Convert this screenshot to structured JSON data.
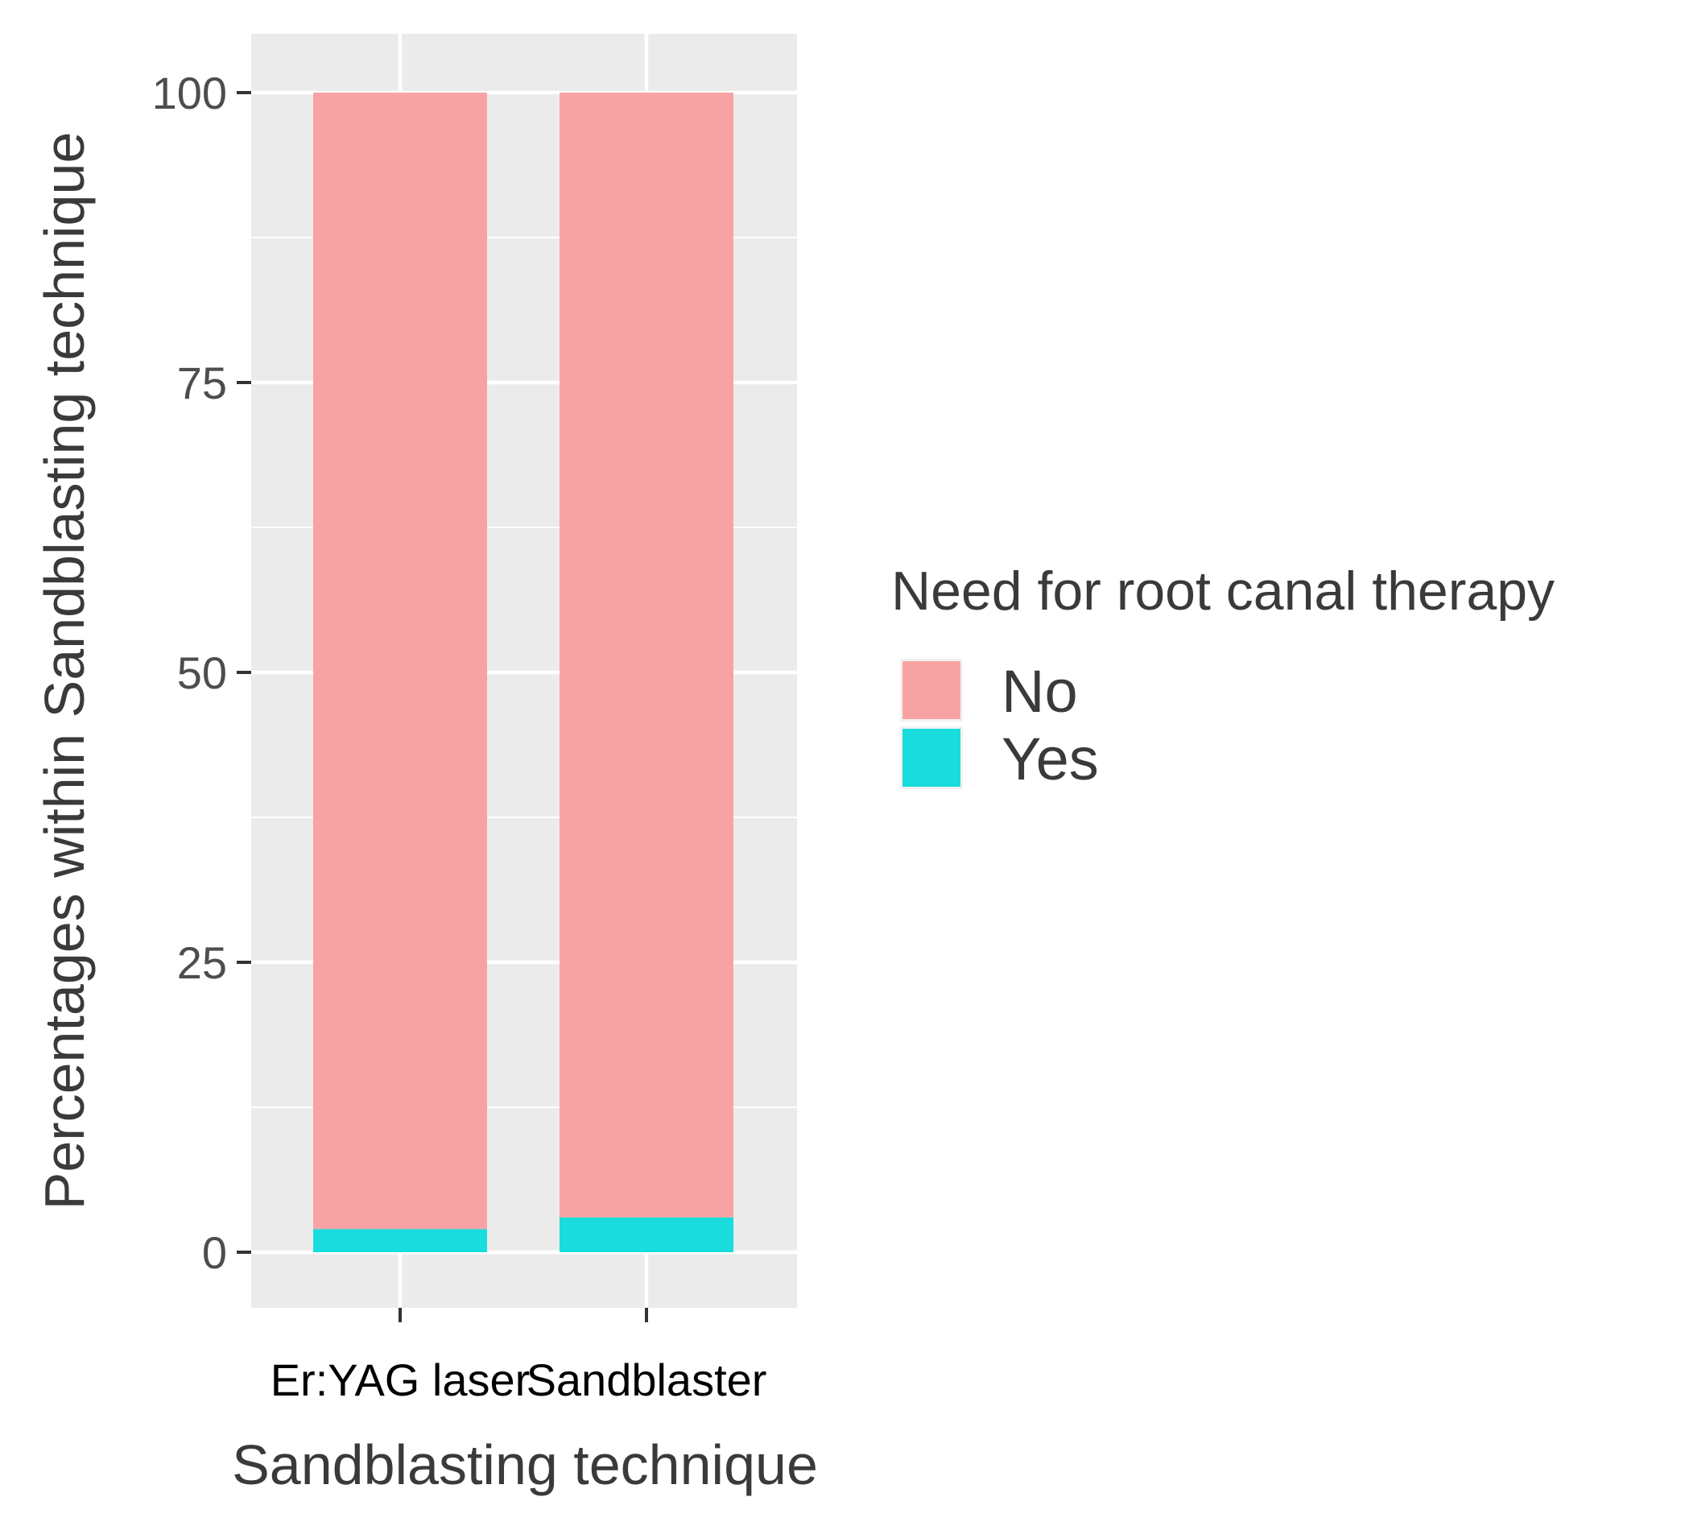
{
  "chart_data": {
    "type": "bar",
    "stacked": true,
    "categories": [
      "Er:YAG laser",
      "Sandblaster"
    ],
    "series": [
      {
        "name": "No",
        "values": [
          98,
          97
        ],
        "color": "#F8A3A3"
      },
      {
        "name": "Yes",
        "values": [
          2,
          3
        ],
        "color": "#19DCDC"
      }
    ],
    "title": "",
    "xlabel": "Sandblasting technique",
    "ylabel": "Percentages within Sandblasting technique",
    "ylim": [
      -5,
      105
    ],
    "yticks": [
      0,
      25,
      50,
      75,
      100
    ],
    "grid": true,
    "legend": {
      "title": "Need for root canal therapy",
      "position": "right"
    },
    "panel_color": "#EBEBEB",
    "grid_color": "#FFFFFF"
  }
}
